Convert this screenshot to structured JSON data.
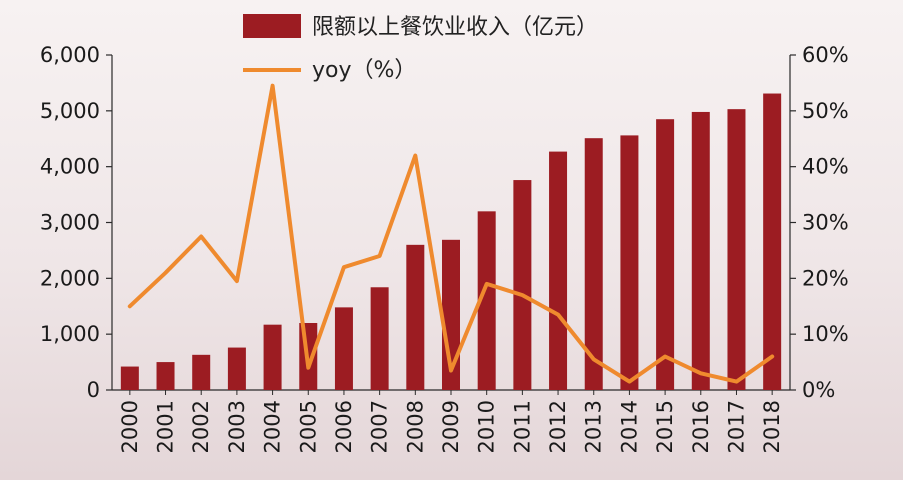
{
  "chart_data": {
    "type": "bar+line",
    "title": "",
    "categories": [
      "2000",
      "2001",
      "2002",
      "2003",
      "2004",
      "2005",
      "2006",
      "2007",
      "2008",
      "2009",
      "2010",
      "2011",
      "2012",
      "2013",
      "2014",
      "2015",
      "2016",
      "2017",
      "2018"
    ],
    "series": [
      {
        "name": "限额以上餐饮业收入（亿元）",
        "type": "bar",
        "axis": "left",
        "values": [
          420,
          500,
          630,
          760,
          1170,
          1200,
          1480,
          1840,
          2600,
          2690,
          3200,
          3760,
          4270,
          4510,
          4560,
          4850,
          4980,
          5030,
          5310
        ]
      },
      {
        "name": "yoy（%）",
        "type": "line",
        "axis": "right",
        "values": [
          15.0,
          21.0,
          27.5,
          19.5,
          54.5,
          4.0,
          22.0,
          24.0,
          42.0,
          3.5,
          19.0,
          17.0,
          13.5,
          5.5,
          1.5,
          6.0,
          3.0,
          1.5,
          6.0
        ]
      }
    ],
    "y_left": {
      "min": 0,
      "max": 6000,
      "ticks": [
        "0",
        "1,000",
        "2,000",
        "3,000",
        "4,000",
        "5,000",
        "6,000"
      ]
    },
    "y_right": {
      "min": 0,
      "max": 60,
      "ticks": [
        "0%",
        "10%",
        "20%",
        "30%",
        "40%",
        "50%",
        "60%"
      ]
    },
    "legend_position": "top-center",
    "grid": false
  },
  "colors": {
    "bar": "#9c1c22",
    "line": "#ef8a2e",
    "axis": "#2a2a2a"
  }
}
